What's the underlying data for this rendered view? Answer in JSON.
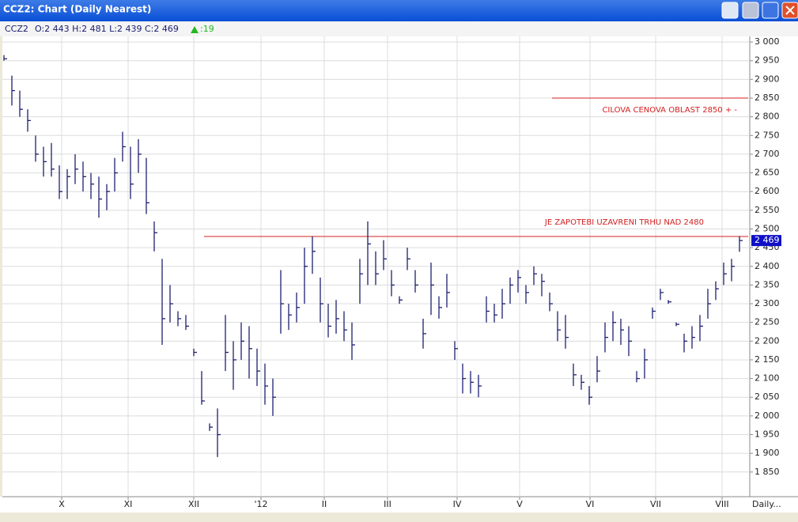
{
  "window_title": "CCZ2: Chart (Daily Nearest)",
  "info": {
    "symbol": "CCZ2",
    "ohlc": "O:2 443 H:2 481 L:2 439 C:2 469",
    "change": ":19"
  },
  "chart_data": {
    "type": "ohlc",
    "color": "#1c2070",
    "grid": true,
    "period_label": "Daily...",
    "ylim": [
      1784,
      3015
    ],
    "yticks": [
      {
        "value": 3000,
        "label": "3 000"
      },
      {
        "value": 2950,
        "label": "2 950"
      },
      {
        "value": 2900,
        "label": "2 900"
      },
      {
        "value": 2850,
        "label": "2 850"
      },
      {
        "value": 2800,
        "label": "2 800"
      },
      {
        "value": 2750,
        "label": "2 750"
      },
      {
        "value": 2700,
        "label": "2 700"
      },
      {
        "value": 2650,
        "label": "2 650"
      },
      {
        "value": 2600,
        "label": "2 600"
      },
      {
        "value": 2550,
        "label": "2 550"
      },
      {
        "value": 2500,
        "label": "2 500"
      },
      {
        "value": 2450,
        "label": "2 450"
      },
      {
        "value": 2400,
        "label": "2 400"
      },
      {
        "value": 2350,
        "label": "2 350"
      },
      {
        "value": 2300,
        "label": "2 300"
      },
      {
        "value": 2250,
        "label": "2 250"
      },
      {
        "value": 2200,
        "label": "2 200"
      },
      {
        "value": 2150,
        "label": "2 150"
      },
      {
        "value": 2100,
        "label": "2 100"
      },
      {
        "value": 2050,
        "label": "2 050"
      },
      {
        "value": 2000,
        "label": "2 000"
      },
      {
        "value": 1950,
        "label": "1 950"
      },
      {
        "value": 1900,
        "label": "1 900"
      },
      {
        "value": 1850,
        "label": "1 850"
      }
    ],
    "xlim": [
      -0.2,
      94.3
    ],
    "xticks": [
      {
        "value": 7.3,
        "label": "X"
      },
      {
        "value": 15.7,
        "label": "XI"
      },
      {
        "value": 24,
        "label": "XII"
      },
      {
        "value": 32.5,
        "label": "'12"
      },
      {
        "value": 40.5,
        "label": "II"
      },
      {
        "value": 48.5,
        "label": "III"
      },
      {
        "value": 57.3,
        "label": "IV"
      },
      {
        "value": 65.2,
        "label": "V"
      },
      {
        "value": 74.1,
        "label": "VI"
      },
      {
        "value": 82.4,
        "label": "VII"
      },
      {
        "value": 90.8,
        "label": "VIII"
      }
    ],
    "high": [
      2965,
      2910,
      2870,
      2820,
      2750,
      2720,
      2730,
      2670,
      2660,
      2700,
      2680,
      2650,
      2640,
      2620,
      2690,
      2760,
      2720,
      2740,
      2690,
      2520,
      2420,
      2350,
      2280,
      2270,
      2180,
      2120,
      1980,
      2020,
      2270,
      2200,
      2250,
      2240,
      2180,
      2140,
      2100,
      2390,
      2300,
      2330,
      2450,
      2480,
      2370,
      2300,
      2310,
      2280,
      2250,
      2420,
      2520,
      2440,
      2470,
      2390,
      2320,
      2450,
      2390,
      2260,
      2410,
      2320,
      2380,
      2200,
      2140,
      2120,
      2110,
      2320,
      2300,
      2340,
      2370,
      2390,
      2350,
      2400,
      2380,
      2330,
      2280,
      2270,
      2140,
      2110,
      2080,
      2160,
      2250,
      2280,
      2260,
      2240,
      2120,
      2180,
      2290,
      2340,
      2310,
      2250,
      2220,
      2240,
      2270,
      2340,
      2360,
      2410,
      2420,
      2481
    ],
    "low": [
      2950,
      2830,
      2800,
      2760,
      2680,
      2640,
      2640,
      2580,
      2580,
      2620,
      2600,
      2580,
      2530,
      2550,
      2600,
      2680,
      2580,
      2650,
      2540,
      2440,
      2190,
      2250,
      2240,
      2230,
      2160,
      2030,
      1960,
      1890,
      2120,
      2070,
      2150,
      2100,
      2080,
      2030,
      2000,
      2220,
      2230,
      2250,
      2300,
      2380,
      2250,
      2210,
      2220,
      2200,
      2150,
      2300,
      2350,
      2350,
      2390,
      2320,
      2300,
      2390,
      2330,
      2180,
      2270,
      2260,
      2290,
      2150,
      2060,
      2060,
      2050,
      2250,
      2250,
      2260,
      2300,
      2330,
      2300,
      2350,
      2320,
      2280,
      2200,
      2180,
      2080,
      2070,
      2030,
      2090,
      2170,
      2200,
      2190,
      2160,
      2090,
      2100,
      2260,
      2310,
      2300,
      2240,
      2170,
      2180,
      2200,
      2260,
      2310,
      2350,
      2360,
      2439
    ],
    "close": [
      2955,
      2870,
      2820,
      2790,
      2700,
      2680,
      2660,
      2600,
      2640,
      2660,
      2640,
      2620,
      2580,
      2600,
      2650,
      2720,
      2620,
      2700,
      2570,
      2490,
      2260,
      2300,
      2260,
      2240,
      2170,
      2040,
      1970,
      1950,
      2170,
      2150,
      2200,
      2180,
      2120,
      2080,
      2050,
      2300,
      2270,
      2290,
      2400,
      2440,
      2300,
      2240,
      2260,
      2230,
      2190,
      2380,
      2460,
      2380,
      2420,
      2350,
      2310,
      2420,
      2350,
      2220,
      2350,
      2290,
      2330,
      2180,
      2100,
      2090,
      2080,
      2280,
      2270,
      2300,
      2350,
      2370,
      2330,
      2380,
      2360,
      2300,
      2230,
      2210,
      2110,
      2090,
      2050,
      2120,
      2210,
      2250,
      2230,
      2200,
      2100,
      2150,
      2280,
      2330,
      2305,
      2245,
      2200,
      2210,
      2240,
      2300,
      2340,
      2380,
      2400,
      2469
    ],
    "last": {
      "value": 2469,
      "label": "2 469"
    },
    "annotations": [
      {
        "value": 2850,
        "label": "CILOVA CENOVA OBLAST 2850 + -"
      },
      {
        "value": 2480,
        "label": "JE ZAPOTEBI UZAVRENI TRHU NAD 2480"
      }
    ]
  }
}
